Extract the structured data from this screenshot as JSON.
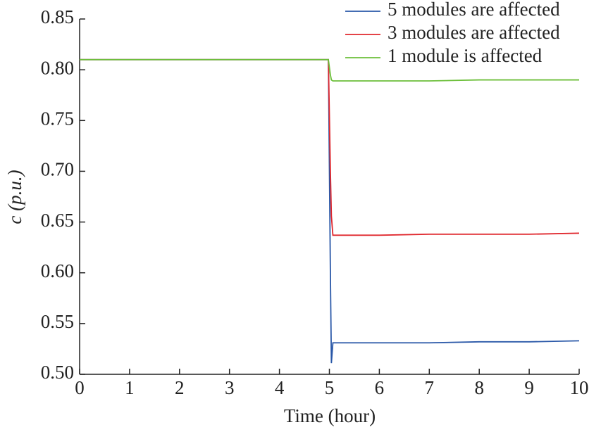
{
  "chart_data": {
    "type": "line",
    "xlabel": "Time (hour)",
    "ylabel": "c (p.u.)",
    "x": [
      0,
      4.98,
      5.02,
      5.04,
      5.07,
      6,
      7,
      8,
      9,
      10
    ],
    "series": [
      {
        "name": "5 modules are affected",
        "color": "#2a58a8",
        "values": [
          0.81,
          0.81,
          0.6,
          0.511,
          0.531,
          0.531,
          0.531,
          0.532,
          0.532,
          0.533
        ]
      },
      {
        "name": "3 modules are affected",
        "color": "#e0282e",
        "values": [
          0.81,
          0.81,
          0.7,
          0.656,
          0.637,
          0.637,
          0.638,
          0.638,
          0.638,
          0.639
        ]
      },
      {
        "name": "1 module is affected",
        "color": "#6cbf3a",
        "values": [
          0.81,
          0.81,
          0.795,
          0.79,
          0.789,
          0.789,
          0.789,
          0.79,
          0.79,
          0.79
        ]
      }
    ],
    "xlim": [
      0,
      10
    ],
    "xticks": [
      0,
      1,
      2,
      3,
      4,
      5,
      6,
      7,
      8,
      9,
      10
    ],
    "ylim": [
      0.5,
      0.85
    ],
    "yticks": [
      {
        "value": 0.5,
        "label": "0.50"
      },
      0.55,
      {
        "value": 0.6,
        "label": "0.60"
      },
      0.65,
      {
        "value": 0.7,
        "label": "0.70"
      },
      0.75,
      {
        "value": 0.8,
        "label": "0.80"
      },
      0.85
    ],
    "legend": "upper right"
  }
}
